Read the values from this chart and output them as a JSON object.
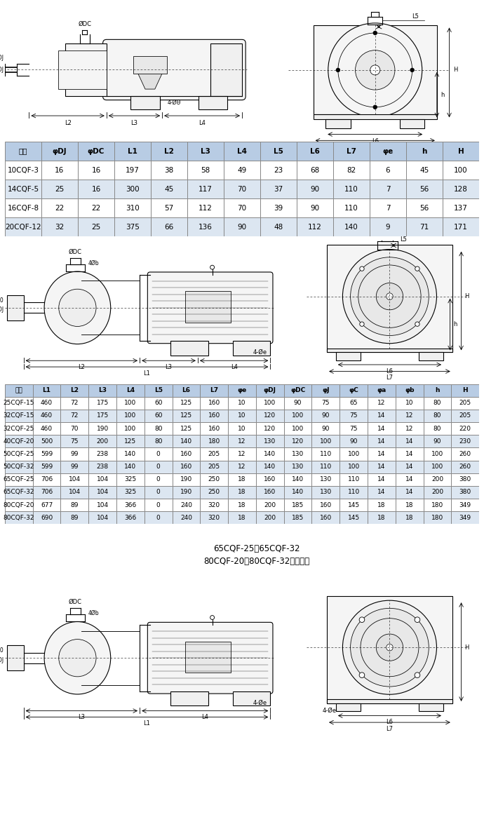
{
  "table1_header": [
    "型号",
    "φDJ",
    "φDC",
    "L1",
    "L2",
    "L3",
    "L4",
    "L5",
    "L6",
    "L7",
    "φe",
    "h",
    "H"
  ],
  "table1_rows": [
    [
      "10CQF-3",
      "16",
      "16",
      "197",
      "38",
      "58",
      "49",
      "23",
      "68",
      "82",
      "6",
      "45",
      "100"
    ],
    [
      "14CQF-5",
      "25",
      "16",
      "300",
      "45",
      "117",
      "70",
      "37",
      "90",
      "110",
      "7",
      "56",
      "128"
    ],
    [
      "16CQF-8",
      "22",
      "22",
      "310",
      "57",
      "112",
      "70",
      "39",
      "90",
      "110",
      "7",
      "56",
      "137"
    ],
    [
      "20CQF-12",
      "32",
      "25",
      "375",
      "66",
      "136",
      "90",
      "48",
      "112",
      "140",
      "9",
      "71",
      "171"
    ]
  ],
  "table2_header": [
    "型号",
    "L1",
    "L2",
    "L3",
    "L4",
    "L5",
    "L6",
    "L7",
    "φe",
    "φDJ",
    "φDC",
    "φJ",
    "φC",
    "φa",
    "φb",
    "h",
    "H"
  ],
  "table2_rows": [
    [
      "25CQF-15",
      "460",
      "72",
      "175",
      "100",
      "60",
      "125",
      "160",
      "10",
      "100",
      "90",
      "75",
      "65",
      "12",
      "10",
      "80",
      "205"
    ],
    [
      "32CQF-15",
      "460",
      "72",
      "175",
      "100",
      "60",
      "125",
      "160",
      "10",
      "120",
      "100",
      "90",
      "75",
      "14",
      "12",
      "80",
      "205"
    ],
    [
      "32CQF-25",
      "460",
      "70",
      "190",
      "100",
      "80",
      "125",
      "160",
      "10",
      "120",
      "100",
      "90",
      "75",
      "14",
      "12",
      "80",
      "220"
    ],
    [
      "40CQF-20",
      "500",
      "75",
      "200",
      "125",
      "80",
      "140",
      "180",
      "12",
      "130",
      "120",
      "100",
      "90",
      "14",
      "14",
      "90",
      "230"
    ],
    [
      "50CQF-25",
      "599",
      "99",
      "238",
      "140",
      "0",
      "160",
      "205",
      "12",
      "140",
      "130",
      "110",
      "100",
      "14",
      "14",
      "100",
      "260"
    ],
    [
      "50CQF-32",
      "599",
      "99",
      "238",
      "140",
      "0",
      "160",
      "205",
      "12",
      "140",
      "130",
      "110",
      "100",
      "14",
      "14",
      "100",
      "260"
    ],
    [
      "65CQF-25",
      "706",
      "104",
      "104",
      "325",
      "0",
      "190",
      "250",
      "18",
      "160",
      "140",
      "130",
      "110",
      "14",
      "14",
      "200",
      "380"
    ],
    [
      "65CQF-32",
      "706",
      "104",
      "104",
      "325",
      "0",
      "190",
      "250",
      "18",
      "160",
      "140",
      "130",
      "110",
      "14",
      "14",
      "200",
      "380"
    ],
    [
      "80CQF-20",
      "677",
      "89",
      "104",
      "366",
      "0",
      "240",
      "320",
      "18",
      "200",
      "185",
      "160",
      "145",
      "18",
      "18",
      "180",
      "349"
    ],
    [
      "80CQF-32",
      "690",
      "89",
      "104",
      "366",
      "0",
      "240",
      "320",
      "18",
      "200",
      "185",
      "160",
      "145",
      "18",
      "18",
      "180",
      "349"
    ]
  ],
  "note_text": "65CQF-25、65CQF-32\n80CQF-20、80CQF-32按照此图",
  "header_bg": "#b8cce4",
  "row_bg_odd": "#ffffff",
  "row_bg_even": "#dce6f1",
  "border_color": "#888888",
  "text_color": "#000000"
}
